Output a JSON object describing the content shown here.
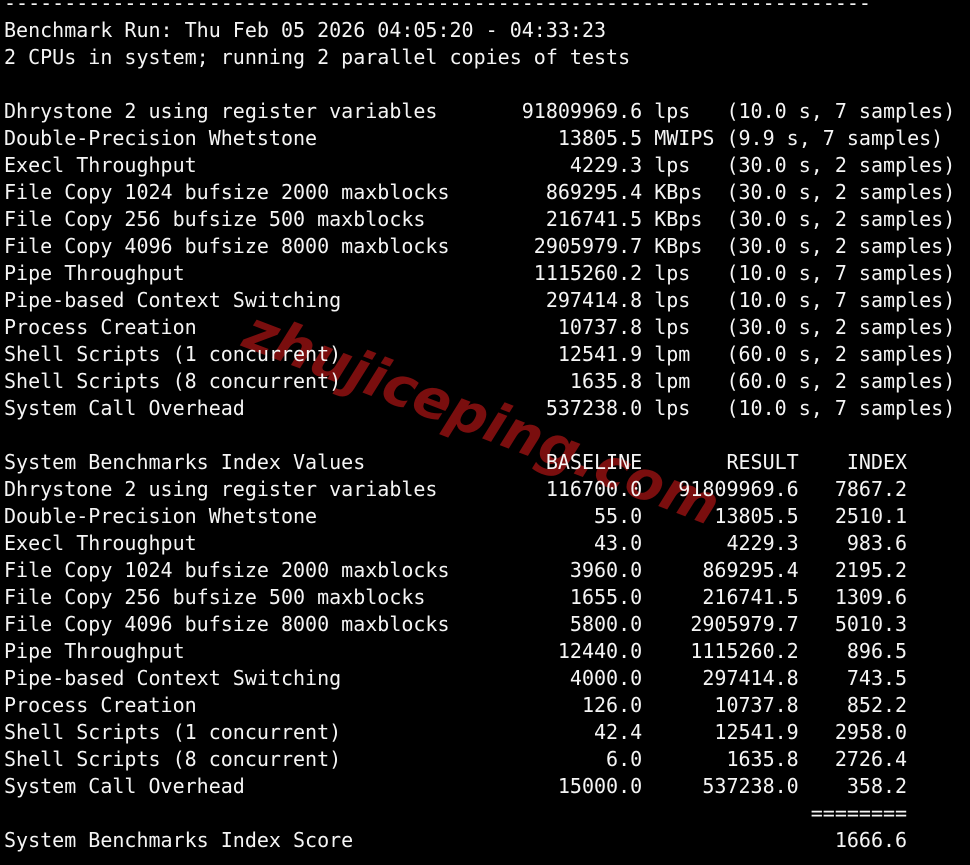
{
  "terminal": {
    "separator_char": "-",
    "separator_count": 72,
    "run_line": "Benchmark Run: Thu Feb 05 2026 04:05:20 - 04:33:23",
    "cpu_line": "2 CPUs in system; running 2 parallel copies of tests",
    "colors": {
      "background": "#000000",
      "text": "#f5f5f5"
    },
    "results": [
      {
        "name": "Dhrystone 2 using register variables",
        "value": "91809969.6",
        "unit": "lps",
        "timing": "10.0 s, 7 samples"
      },
      {
        "name": "Double-Precision Whetstone",
        "value": "13805.5",
        "unit": "MWIPS",
        "timing": "9.9 s, 7 samples"
      },
      {
        "name": "Execl Throughput",
        "value": "4229.3",
        "unit": "lps",
        "timing": "30.0 s, 2 samples"
      },
      {
        "name": "File Copy 1024 bufsize 2000 maxblocks",
        "value": "869295.4",
        "unit": "KBps",
        "timing": "30.0 s, 2 samples"
      },
      {
        "name": "File Copy 256 bufsize 500 maxblocks",
        "value": "216741.5",
        "unit": "KBps",
        "timing": "30.0 s, 2 samples"
      },
      {
        "name": "File Copy 4096 bufsize 8000 maxblocks",
        "value": "2905979.7",
        "unit": "KBps",
        "timing": "30.0 s, 2 samples"
      },
      {
        "name": "Pipe Throughput",
        "value": "1115260.2",
        "unit": "lps",
        "timing": "10.0 s, 7 samples"
      },
      {
        "name": "Pipe-based Context Switching",
        "value": "297414.8",
        "unit": "lps",
        "timing": "10.0 s, 7 samples"
      },
      {
        "name": "Process Creation",
        "value": "10737.8",
        "unit": "lps",
        "timing": "30.0 s, 2 samples"
      },
      {
        "name": "Shell Scripts (1 concurrent)",
        "value": "12541.9",
        "unit": "lpm",
        "timing": "60.0 s, 2 samples"
      },
      {
        "name": "Shell Scripts (8 concurrent)",
        "value": "1635.8",
        "unit": "lpm",
        "timing": "60.0 s, 2 samples"
      },
      {
        "name": "System Call Overhead",
        "value": "537238.0",
        "unit": "lps",
        "timing": "10.0 s, 7 samples"
      }
    ],
    "index_table": {
      "title": "System Benchmarks Index Values",
      "columns": [
        "BASELINE",
        "RESULT",
        "INDEX"
      ],
      "rows": [
        {
          "name": "Dhrystone 2 using register variables",
          "baseline": "116700.0",
          "result": "91809969.6",
          "index": "7867.2"
        },
        {
          "name": "Double-Precision Whetstone",
          "baseline": "55.0",
          "result": "13805.5",
          "index": "2510.1"
        },
        {
          "name": "Execl Throughput",
          "baseline": "43.0",
          "result": "4229.3",
          "index": "983.6"
        },
        {
          "name": "File Copy 1024 bufsize 2000 maxblocks",
          "baseline": "3960.0",
          "result": "869295.4",
          "index": "2195.2"
        },
        {
          "name": "File Copy 256 bufsize 500 maxblocks",
          "baseline": "1655.0",
          "result": "216741.5",
          "index": "1309.6"
        },
        {
          "name": "File Copy 4096 bufsize 8000 maxblocks",
          "baseline": "5800.0",
          "result": "2905979.7",
          "index": "5010.3"
        },
        {
          "name": "Pipe Throughput",
          "baseline": "12440.0",
          "result": "1115260.2",
          "index": "896.5"
        },
        {
          "name": "Pipe-based Context Switching",
          "baseline": "4000.0",
          "result": "297414.8",
          "index": "743.5"
        },
        {
          "name": "Process Creation",
          "baseline": "126.0",
          "result": "10737.8",
          "index": "852.2"
        },
        {
          "name": "Shell Scripts (1 concurrent)",
          "baseline": "42.4",
          "result": "12541.9",
          "index": "2958.0"
        },
        {
          "name": "Shell Scripts (8 concurrent)",
          "baseline": "6.0",
          "result": "1635.8",
          "index": "2726.4"
        },
        {
          "name": "System Call Overhead",
          "baseline": "15000.0",
          "result": "537238.0",
          "index": "358.2"
        }
      ],
      "score_separator": "========",
      "score_label": "System Benchmarks Index Score",
      "score": "1666.6"
    }
  },
  "watermark": {
    "text": "zhujiceping.com",
    "color": "#7a0e0e"
  }
}
